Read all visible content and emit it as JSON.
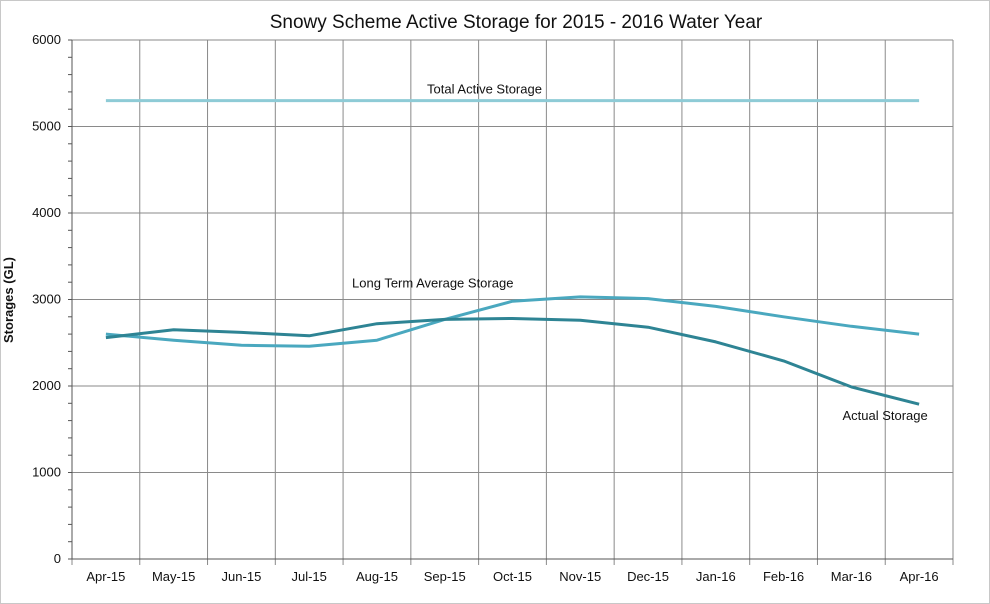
{
  "chart_data": {
    "type": "line",
    "title": "Snowy Scheme Active Storage for 2015 - 2016 Water Year",
    "xlabel": "",
    "ylabel": "Storages (GL)",
    "ylim": [
      0,
      6000
    ],
    "yticks": [
      "0",
      "1000",
      "2000",
      "3000",
      "4000",
      "5000",
      "6000"
    ],
    "grid": true,
    "categories": [
      "Apr-15",
      "May-15",
      "Jun-15",
      "Jul-15",
      "Aug-15",
      "Sep-15",
      "Oct-15",
      "Nov-15",
      "Dec-15",
      "Jan-16",
      "Feb-16",
      "Mar-16",
      "Apr-16"
    ],
    "series": [
      {
        "name": "Total Active Storage",
        "color": "#8ecbd6",
        "values": [
          5300,
          5300,
          5300,
          5300,
          5300,
          5300,
          5300,
          5300,
          5300,
          5300,
          5300,
          5300,
          5300
        ]
      },
      {
        "name": "Long Term Average Storage",
        "color": "#4aa8bf",
        "values": [
          2600,
          2530,
          2470,
          2460,
          2530,
          2770,
          2980,
          3030,
          3010,
          2920,
          2800,
          2690,
          2600
        ]
      },
      {
        "name": "Actual Storage",
        "color": "#2e8494",
        "values": [
          2560,
          2650,
          2620,
          2580,
          2720,
          2770,
          2780,
          2760,
          2680,
          2510,
          2290,
          1990,
          1790
        ]
      }
    ]
  }
}
